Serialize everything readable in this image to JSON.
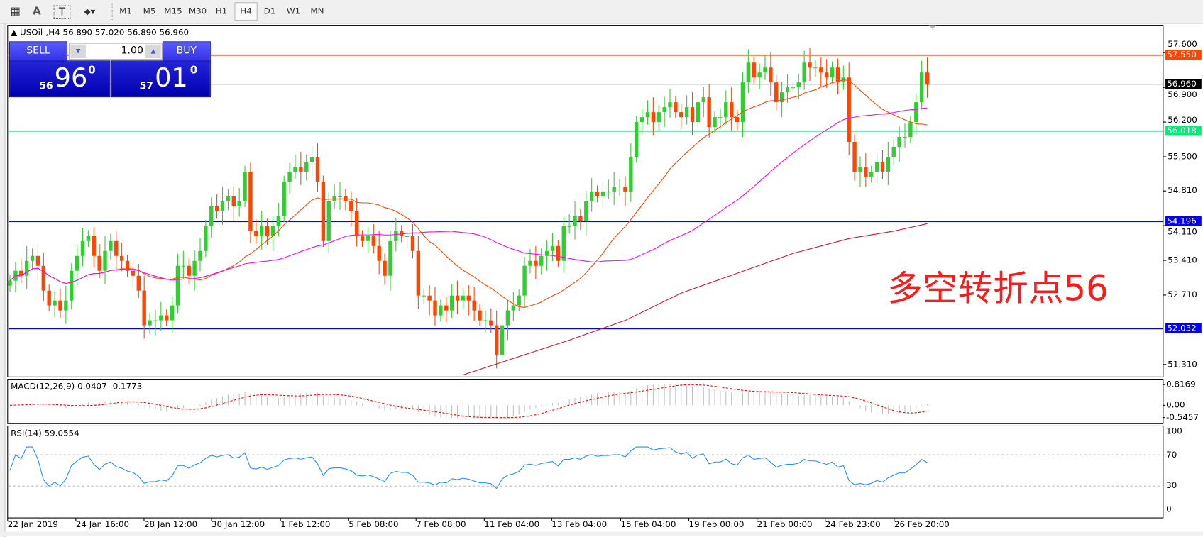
{
  "toolbar": {
    "icons": [
      "grid-f-icon",
      "text-a-icon",
      "text-box-icon",
      "arrows-dropdown-icon"
    ],
    "icon_glyphs": [
      "▦",
      "A",
      "T",
      "⬥▾"
    ],
    "timeframes": [
      "M1",
      "M5",
      "M15",
      "M30",
      "H1",
      "H4",
      "D1",
      "W1",
      "MN"
    ],
    "active_timeframe": "H4"
  },
  "chart": {
    "header": "USOil-,H4  56.890 57.020 56.890 56.960",
    "note": "多空转折点56"
  },
  "trade_panel": {
    "sell_label": "SELL",
    "buy_label": "BUY",
    "lot": "1.00",
    "sell_small": "56",
    "sell_big": "96",
    "sell_sup": "0",
    "buy_small": "57",
    "buy_big": "01",
    "buy_sup": "0"
  },
  "colors": {
    "bull": "#32cd32",
    "bear": "#ff4500",
    "ma_short": "#ff4500",
    "ma_mid": "#ff00ff",
    "ma_long": "#d2142d",
    "rsi": "#1e90ff",
    "macd_signal": "#ff0000",
    "macd_hist": "#c0c0c0"
  },
  "chart_data": {
    "type": "candlestick",
    "symbol": "USOil-",
    "timeframe": "H4",
    "price_axis_ticks": [
      "57.600",
      "56.900",
      "56.200",
      "55.500",
      "54.810",
      "54.110",
      "53.410",
      "52.710",
      "51.310"
    ],
    "price_ticks_values": [
      57.6,
      56.9,
      56.2,
      55.5,
      54.81,
      54.11,
      53.41,
      52.71,
      51.31
    ],
    "ylim": [
      51.05,
      58.15
    ],
    "levels": [
      {
        "label": "57.550",
        "value": 57.55,
        "color": "#ff4500"
      },
      {
        "label": "56.960",
        "value": 56.96,
        "color": "#000000",
        "line": "#c0c0c0"
      },
      {
        "label": "56.018",
        "value": 56.018,
        "color": "#00ee77"
      },
      {
        "label": "54.196",
        "value": 54.196,
        "color": "#0000ff"
      },
      {
        "label": "52.032",
        "value": 52.032,
        "color": "#0000ff"
      }
    ],
    "closes": [
      53.0,
      53.2,
      53.1,
      53.4,
      53.5,
      53.3,
      52.8,
      52.5,
      52.6,
      52.4,
      52.6,
      53.2,
      53.5,
      53.8,
      53.9,
      53.5,
      53.2,
      53.6,
      53.8,
      53.5,
      53.4,
      53.2,
      53.1,
      52.8,
      52.1,
      52.2,
      52.2,
      52.3,
      52.2,
      52.5,
      53.3,
      53.3,
      53.1,
      53.4,
      53.6,
      54.1,
      54.5,
      54.4,
      54.6,
      54.7,
      54.5,
      54.6,
      55.2,
      54.0,
      53.9,
      54.1,
      53.9,
      54.1,
      54.3,
      55.0,
      55.2,
      55.3,
      55.2,
      55.4,
      55.5,
      55.0,
      53.8,
      54.6,
      54.7,
      54.7,
      54.6,
      54.4,
      53.9,
      53.8,
      53.9,
      53.7,
      53.4,
      53.1,
      53.8,
      54.0,
      53.9,
      53.9,
      53.6,
      52.7,
      52.7,
      52.6,
      52.3,
      52.5,
      52.4,
      52.7,
      52.6,
      52.7,
      52.6,
      52.4,
      52.2,
      52.2,
      52.1,
      51.5,
      52.1,
      52.4,
      52.5,
      52.7,
      53.3,
      53.4,
      53.3,
      53.5,
      53.6,
      53.7,
      53.4,
      54.1,
      54.1,
      54.3,
      54.2,
      54.6,
      54.8,
      54.7,
      54.8,
      54.8,
      54.9,
      54.9,
      54.8,
      55.5,
      56.2,
      56.3,
      56.4,
      56.2,
      56.4,
      56.5,
      56.6,
      56.4,
      56.3,
      56.5,
      56.2,
      56.6,
      56.7,
      56.1,
      56.3,
      56.3,
      56.6,
      56.3,
      56.2,
      57.0,
      57.4,
      57.1,
      57.2,
      57.3,
      57.0,
      56.6,
      56.8,
      56.9,
      56.9,
      57.0,
      57.4,
      57.3,
      57.3,
      57.2,
      57.1,
      57.3,
      57.0,
      57.1,
      55.8,
      55.2,
      55.3,
      55.1,
      55.2,
      55.4,
      55.2,
      55.5,
      55.7,
      55.9,
      55.9,
      56.2,
      56.6,
      57.2,
      56.96
    ],
    "ma_long_points": [
      [
        81,
        51.1
      ],
      [
        100,
        51.8
      ],
      [
        110,
        52.2
      ],
      [
        120,
        52.75
      ],
      [
        130,
        53.15
      ],
      [
        140,
        53.55
      ],
      [
        150,
        53.85
      ],
      [
        158,
        54.0
      ],
      [
        164,
        54.15
      ]
    ],
    "x_tick_labels": [
      "22 Jan 2019",
      "24 Jan 16:00",
      "28 Jan 12:00",
      "30 Jan 12:00",
      "1 Feb 12:00",
      "5 Feb 08:00",
      "7 Feb 08:00",
      "11 Feb 04:00",
      "13 Feb 04:00",
      "15 Feb 04:00",
      "19 Feb 00:00",
      "21 Feb 00:00",
      "24 Feb 23:00",
      "26 Feb 20:00"
    ],
    "macd": {
      "label": "MACD(12,26,9) 0.0407 -0.1773",
      "ticks": [
        "0.8169",
        "0.00",
        "-0.5457"
      ],
      "tick_values": [
        0.8169,
        0,
        -0.5457
      ]
    },
    "rsi": {
      "label": "RSI(14) 59.0554",
      "ticks": [
        "100",
        "70",
        "30",
        "0"
      ],
      "tick_values": [
        100,
        70,
        30,
        0
      ],
      "levels": [
        70,
        30
      ]
    }
  }
}
